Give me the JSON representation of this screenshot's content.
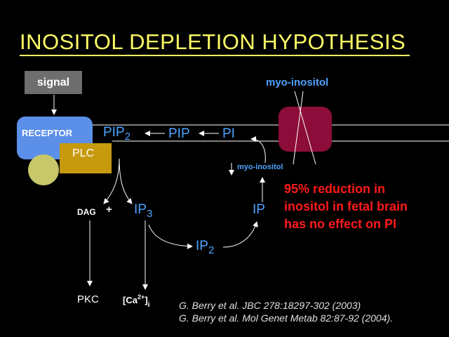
{
  "title": "INOSITOL DEPLETION HYPOTHESIS",
  "boxes": {
    "signal": "signal",
    "receptor": "RECEPTOR",
    "plc": "PLC"
  },
  "molecules": {
    "pip2_base": "PIP",
    "pip2_sub": "2",
    "pip": "PIP",
    "pi": "PI",
    "myo_inositol_top": "myo-inositol",
    "myo_inositol_small": "myo-inositol",
    "dag": "DAG",
    "plus": "+",
    "ip3_base": "IP",
    "ip3_sub": "3",
    "ip2_base": "IP",
    "ip2_sub": "2",
    "ip": "IP",
    "pkc": "PKC",
    "ca_open": "[Ca",
    "ca_sup": "2+",
    "ca_close": "]",
    "ca_sub": "i"
  },
  "finding": {
    "line1": "95% reduction in",
    "line2": "inositol in fetal brain",
    "line3": "has no effect on PI"
  },
  "references": [
    "G. Berry et al. JBC 278:18297-302 (2003)",
    "G. Berry et al. Mol Genet Metab 82:87-92 (2004)."
  ],
  "colors": {
    "background": "#000000",
    "title": "#ffff66",
    "molecule_blue": "#4da3ff",
    "finding_red": "#ff1a1a",
    "receptor_blue": "#5b8fe8",
    "plc_gold": "#c79a0e",
    "transporter_maroon": "#8c0d3a",
    "gq_olive": "#c8c86a"
  }
}
